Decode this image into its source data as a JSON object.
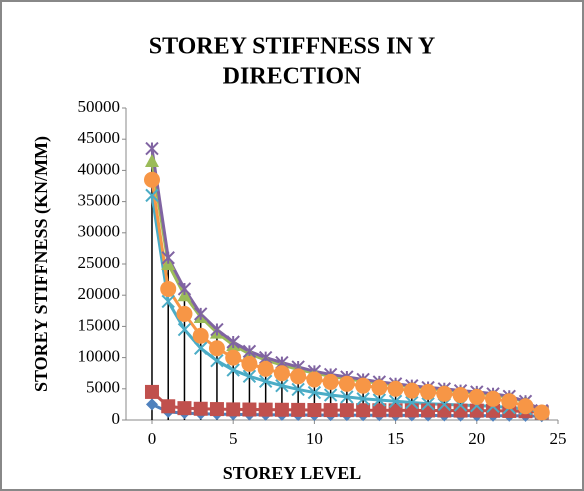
{
  "chart_data": {
    "type": "line",
    "title": [
      "STOREY STIFFNESS IN Y",
      "DIRECTION"
    ],
    "x_label": "STOREY LEVEL",
    "y_label": "STOREY STIFFNESS (KN/MM)",
    "x": [
      0,
      1,
      2,
      3,
      4,
      5,
      6,
      7,
      8,
      9,
      10,
      11,
      12,
      13,
      14,
      15,
      16,
      17,
      18,
      19,
      20,
      21,
      22,
      23,
      24
    ],
    "xlim": [
      -1.6,
      25
    ],
    "xticks": [
      0,
      5,
      10,
      15,
      20,
      25
    ],
    "ylim": [
      0,
      50000
    ],
    "yticks": [
      0,
      5000,
      10000,
      15000,
      20000,
      25000,
      30000,
      35000,
      40000,
      45000,
      50000
    ],
    "drop_lines": true,
    "series": [
      {
        "color": "#4f81bd",
        "marker": "diamond",
        "values": [
          2500,
          1300,
          1100,
          1000,
          950,
          900,
          870,
          850,
          830,
          810,
          800,
          790,
          780,
          770,
          760,
          750,
          740,
          730,
          720,
          710,
          700,
          690,
          680,
          660,
          600
        ]
      },
      {
        "color": "#c0504d",
        "marker": "square",
        "values": [
          4500,
          2200,
          1900,
          1800,
          1750,
          1700,
          1680,
          1660,
          1640,
          1620,
          1600,
          1590,
          1580,
          1570,
          1560,
          1550,
          1540,
          1530,
          1520,
          1510,
          1500,
          1480,
          1450,
          1400,
          1200
        ]
      },
      {
        "color": "#9bbb59",
        "marker": "triangle",
        "values": [
          41500,
          25000,
          20000,
          16500,
          14000,
          12000,
          10600,
          9600,
          8800,
          8100,
          7500,
          7000,
          6600,
          6200,
          5900,
          5600,
          5300,
          5000,
          4800,
          4500,
          4300,
          4000,
          3600,
          2900,
          1400
        ]
      },
      {
        "color": "#4bacc6",
        "marker": "x",
        "values": [
          36000,
          19000,
          14500,
          11500,
          9500,
          8000,
          7000,
          6200,
          5500,
          4900,
          4400,
          4000,
          3700,
          3400,
          3200,
          3000,
          2800,
          2600,
          2500,
          2400,
          2300,
          2200,
          2000,
          1800,
          1200
        ]
      },
      {
        "color": "#8064a2",
        "marker": "star",
        "values": [
          43500,
          26000,
          21000,
          17000,
          14500,
          12500,
          11000,
          10000,
          9200,
          8500,
          7800,
          7300,
          6900,
          6500,
          6100,
          5800,
          5500,
          5200,
          5000,
          4700,
          4500,
          4200,
          3800,
          3000,
          1500
        ]
      },
      {
        "color": "#f79646",
        "marker": "circle",
        "values": [
          38500,
          21000,
          17000,
          13500,
          11500,
          10000,
          9000,
          8200,
          7500,
          7000,
          6500,
          6100,
          5800,
          5500,
          5200,
          5000,
          4700,
          4500,
          4200,
          4000,
          3700,
          3400,
          3000,
          2200,
          1200
        ]
      }
    ]
  }
}
